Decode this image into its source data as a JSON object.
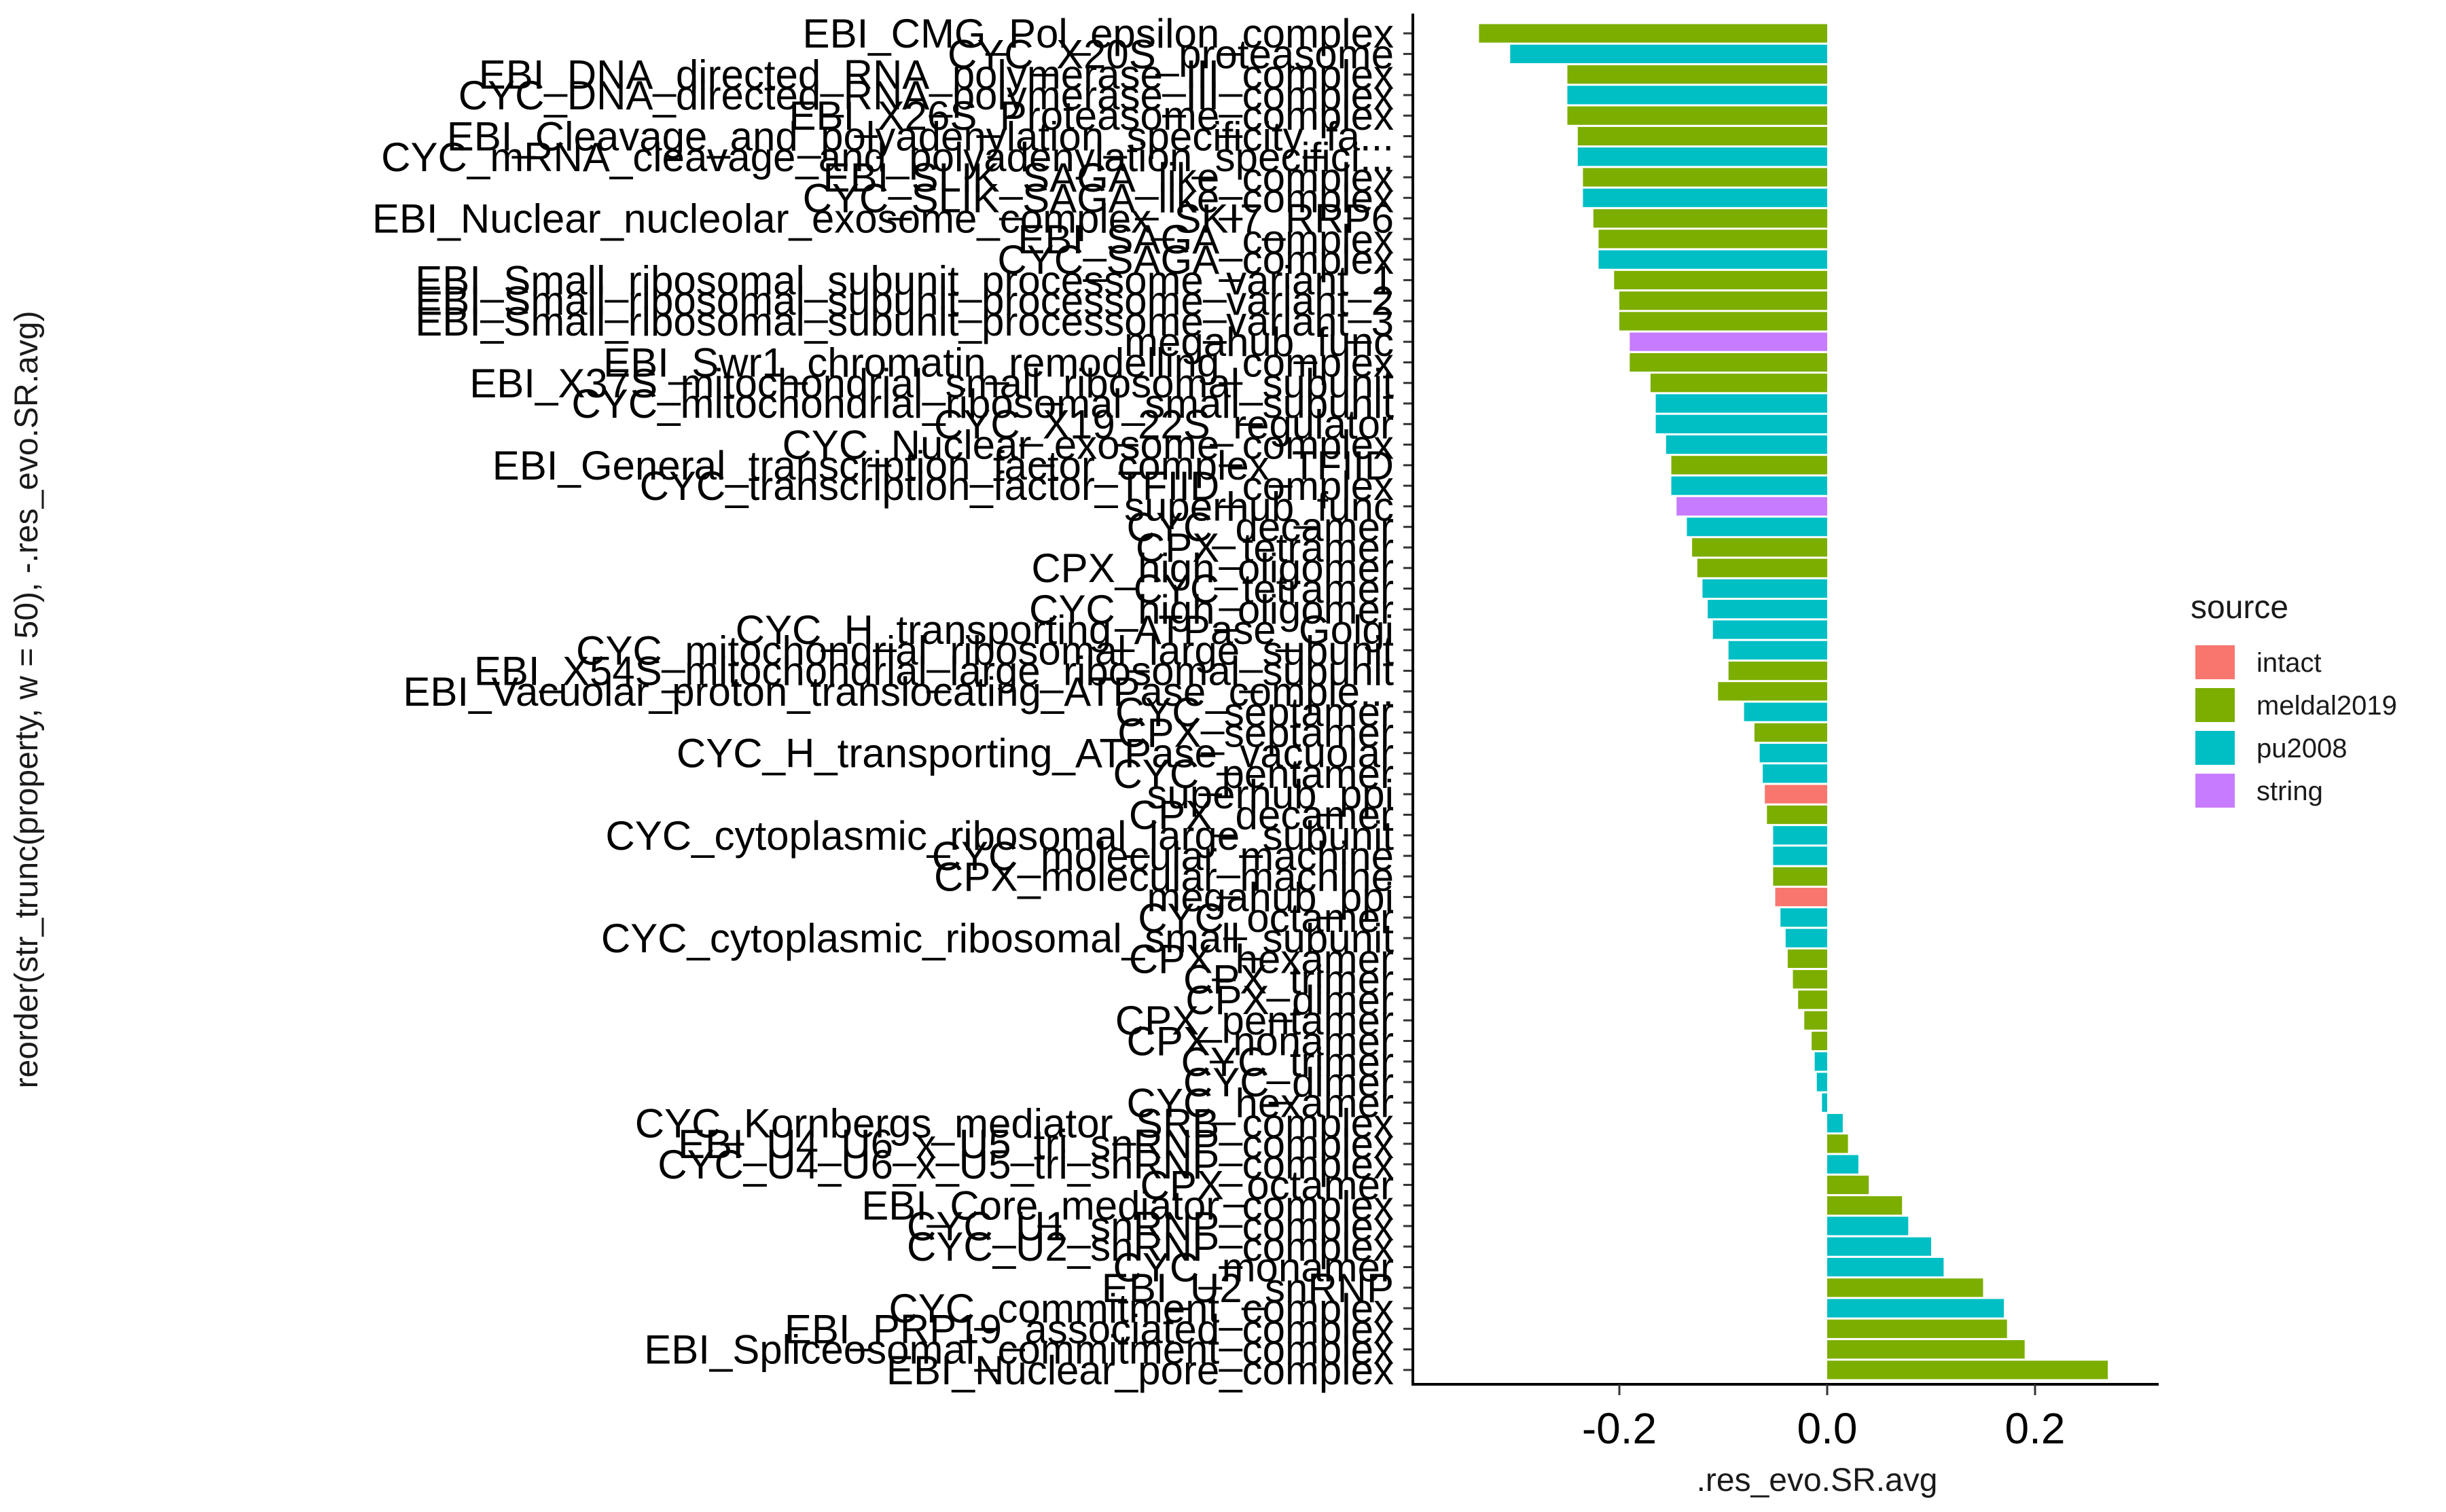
{
  "chart_data": {
    "type": "bar",
    "orientation": "horizontal",
    "xlabel": ".res_evo.SR.avg",
    "ylabel": "reorder(str_trunc(property, w = 50), -.res_evo.SR.avg)",
    "xlim": [
      -0.36,
      0.3
    ],
    "xticks": [
      -0.2,
      0.0,
      0.2
    ],
    "xtick_labels": [
      "-0.2",
      "0.0",
      "0.2"
    ],
    "grid": false,
    "legend": {
      "title": "source",
      "position": "right",
      "entries": [
        {
          "name": "intact",
          "color": "#F8766D"
        },
        {
          "name": "meldal2019",
          "color": "#7CAE00"
        },
        {
          "name": "pu2008",
          "color": "#00BFC4"
        },
        {
          "name": "string",
          "color": "#C77CFF"
        }
      ]
    },
    "bars": [
      {
        "label": "EBI_CMG_Pol_epsilon_complex",
        "value": -0.335,
        "source": "meldal2019"
      },
      {
        "label": "CYC_X20S_proteasome",
        "value": -0.305,
        "source": "pu2008"
      },
      {
        "label": "EBI_DNA_directed_RNA_polymerase_III_complex",
        "value": -0.25,
        "source": "meldal2019"
      },
      {
        "label": "CYC_DNA_directed_RNA_polymerase_III_complex",
        "value": -0.25,
        "source": "pu2008"
      },
      {
        "label": "EBI_X26S_Proteasome_complex",
        "value": -0.25,
        "source": "meldal2019"
      },
      {
        "label": "EBI_Cleavage_and_polyadenylation_specificity_fa...",
        "value": -0.24,
        "source": "meldal2019"
      },
      {
        "label": "CYC_mRNA_cleavage_and_polyadenylation_specifici...",
        "value": -0.24,
        "source": "pu2008"
      },
      {
        "label": "EBI_SLIK_SAGA_like_complex",
        "value": -0.235,
        "source": "meldal2019"
      },
      {
        "label": "CYC_SLIK_SAGA_like_complex",
        "value": -0.235,
        "source": "pu2008"
      },
      {
        "label": "EBI_Nuclear_nucleolar_exosome_complex_SKI7_RRP6",
        "value": -0.225,
        "source": "meldal2019"
      },
      {
        "label": "EBI_SAGA_complex",
        "value": -0.22,
        "source": "meldal2019"
      },
      {
        "label": "CYC_SAGA_complex",
        "value": -0.22,
        "source": "pu2008"
      },
      {
        "label": "EBI_Small_ribosomal_subunit_processome_variant_1",
        "value": -0.205,
        "source": "meldal2019"
      },
      {
        "label": "EBI_Small_ribosomal_subunit_processome_variant_2",
        "value": -0.2,
        "source": "meldal2019"
      },
      {
        "label": "EBI_Small_ribosomal_subunit_processome_variant_3",
        "value": -0.2,
        "source": "meldal2019"
      },
      {
        "label": "megahub_func",
        "value": -0.19,
        "source": "string"
      },
      {
        "label": "EBI_Swr1_chromatin_remodelling_complex",
        "value": -0.19,
        "source": "meldal2019"
      },
      {
        "label": "EBI_X37S_mitochondrial_small_ribosomal_subunit",
        "value": -0.17,
        "source": "meldal2019"
      },
      {
        "label": "CYC_mitochondrial_ribosomal_small_subunit",
        "value": -0.165,
        "source": "pu2008"
      },
      {
        "label": "CYC_X19_22S_regulator",
        "value": -0.165,
        "source": "pu2008"
      },
      {
        "label": "CYC_Nuclear_exosome_complex",
        "value": -0.155,
        "source": "pu2008"
      },
      {
        "label": "EBI_General_transcription_factor_complex_TFIID",
        "value": -0.15,
        "source": "meldal2019"
      },
      {
        "label": "CYC_transcription_factor_TFIID_complex",
        "value": -0.15,
        "source": "pu2008"
      },
      {
        "label": "superhub_func",
        "value": -0.145,
        "source": "string"
      },
      {
        "label": "CYC_decamer",
        "value": -0.135,
        "source": "pu2008"
      },
      {
        "label": "CPX_tetramer",
        "value": -0.13,
        "source": "meldal2019"
      },
      {
        "label": "CPX_high_oligomer",
        "value": -0.125,
        "source": "meldal2019"
      },
      {
        "label": "CYC_tetramer",
        "value": -0.12,
        "source": "pu2008"
      },
      {
        "label": "CYC_high_oligomer",
        "value": -0.115,
        "source": "pu2008"
      },
      {
        "label": "CYC_H_transporting_ATPase_Golgi",
        "value": -0.11,
        "source": "pu2008"
      },
      {
        "label": "CYC_mitochondrial_ribosomal_large_subunit",
        "value": -0.095,
        "source": "pu2008"
      },
      {
        "label": "EBI_X54S_mitochondrial_large_ribosomal_subunit",
        "value": -0.095,
        "source": "meldal2019"
      },
      {
        "label": "EBI_Vacuolar_proton_translocating_ATPase_comple...",
        "value": -0.105,
        "source": "meldal2019"
      },
      {
        "label": "CYC_septamer",
        "value": -0.08,
        "source": "pu2008"
      },
      {
        "label": "CPX_septamer",
        "value": -0.07,
        "source": "meldal2019"
      },
      {
        "label": "CYC_H_transporting_ATPase_vacuolar",
        "value": -0.065,
        "source": "pu2008"
      },
      {
        "label": "CYC_pentamer",
        "value": -0.062,
        "source": "pu2008"
      },
      {
        "label": "superhub_ppi",
        "value": -0.06,
        "source": "intact"
      },
      {
        "label": "CPX_decamer",
        "value": -0.058,
        "source": "meldal2019"
      },
      {
        "label": "CYC_cytoplasmic_ribosomal_large_subunit",
        "value": -0.052,
        "source": "pu2008"
      },
      {
        "label": "CYC_molecular_machine",
        "value": -0.052,
        "source": "pu2008"
      },
      {
        "label": "CPX_molecular_machine",
        "value": -0.052,
        "source": "meldal2019"
      },
      {
        "label": "megahub_ppi",
        "value": -0.05,
        "source": "intact"
      },
      {
        "label": "CYC_octamer",
        "value": -0.045,
        "source": "pu2008"
      },
      {
        "label": "CYC_cytoplasmic_ribosomal_small_subunit",
        "value": -0.04,
        "source": "pu2008"
      },
      {
        "label": "CPX_hexamer",
        "value": -0.038,
        "source": "meldal2019"
      },
      {
        "label": "CPX_trimer",
        "value": -0.033,
        "source": "meldal2019"
      },
      {
        "label": "CPX_dimer",
        "value": -0.028,
        "source": "meldal2019"
      },
      {
        "label": "CPX_pentamer",
        "value": -0.022,
        "source": "meldal2019"
      },
      {
        "label": "CPX_nonamer",
        "value": -0.015,
        "source": "meldal2019"
      },
      {
        "label": "CYC_trimer",
        "value": -0.012,
        "source": "pu2008"
      },
      {
        "label": "CYC_dimer",
        "value": -0.01,
        "source": "pu2008"
      },
      {
        "label": "CYC_hexamer",
        "value": -0.005,
        "source": "pu2008"
      },
      {
        "label": "CYC_Kornbergs_mediator_SRB_complex",
        "value": 0.015,
        "source": "pu2008"
      },
      {
        "label": "EBI_U4_U6_x_U5_tri_snRNP_complex",
        "value": 0.02,
        "source": "meldal2019"
      },
      {
        "label": "CYC_U4_U6_x_U5_tri_snRNP_complex",
        "value": 0.03,
        "source": "pu2008"
      },
      {
        "label": "CPX_octamer",
        "value": 0.04,
        "source": "meldal2019"
      },
      {
        "label": "EBI_Core_mediator_complex",
        "value": 0.072,
        "source": "meldal2019"
      },
      {
        "label": "CYC_U1_snRNP_complex",
        "value": 0.078,
        "source": "pu2008"
      },
      {
        "label": "CYC_U2_snRNP_complex",
        "value": 0.1,
        "source": "pu2008"
      },
      {
        "label": "CYC_monamer",
        "value": 0.112,
        "source": "pu2008"
      },
      {
        "label": "EBI_U2_snRNP",
        "value": 0.15,
        "source": "meldal2019"
      },
      {
        "label": "CYC_commitment_complex",
        "value": 0.17,
        "source": "pu2008"
      },
      {
        "label": "EBI_PRP19_associated_complex",
        "value": 0.173,
        "source": "meldal2019"
      },
      {
        "label": "EBI_Spliceosomal_commitment_complex",
        "value": 0.19,
        "source": "meldal2019"
      },
      {
        "label": "EBI_Nuclear_pore_complex",
        "value": 0.27,
        "source": "meldal2019"
      }
    ]
  }
}
